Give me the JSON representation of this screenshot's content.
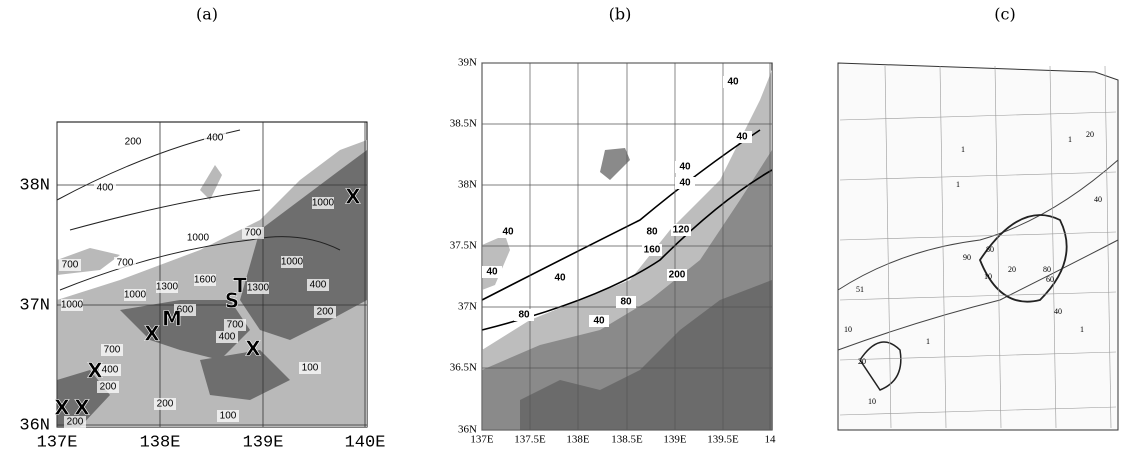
{
  "panels": [
    {
      "label": "(a)",
      "y_ticks": [
        "38N",
        "37N",
        "36N"
      ],
      "x_ticks": [
        "137E",
        "138E",
        "139E",
        "140E"
      ],
      "contour_labels": [
        "200",
        "400",
        "400",
        "1000",
        "700",
        "700",
        "1000",
        "700",
        "1600",
        "1000",
        "1300",
        "1000",
        "400",
        "200",
        "1000",
        "1300",
        "600",
        "700",
        "400",
        "700",
        "400",
        "200",
        "200",
        "100",
        "100",
        "200"
      ],
      "markers": [
        "M",
        "S",
        "T",
        "X",
        "X",
        "X",
        "X",
        "X",
        "X"
      ]
    },
    {
      "label": "(b)",
      "y_ticks": [
        "39N",
        "38.5N",
        "38N",
        "37.5N",
        "37N",
        "36.5N",
        "36N"
      ],
      "x_ticks": [
        "137E",
        "137.5E",
        "138E",
        "138.5E",
        "139E",
        "139.5E",
        "14"
      ],
      "contour_labels": [
        "40",
        "40",
        "40",
        "40",
        "80",
        "120",
        "160",
        "200",
        "40",
        "40",
        "40",
        "80",
        "80",
        "40"
      ]
    },
    {
      "label": "(c)",
      "contour_labels": [
        "1",
        "1",
        "1",
        "20",
        "40",
        "80",
        "90",
        "10",
        "20",
        "80",
        "60",
        "51",
        "10",
        "20",
        "40",
        "10",
        "1",
        "1"
      ]
    }
  ]
}
